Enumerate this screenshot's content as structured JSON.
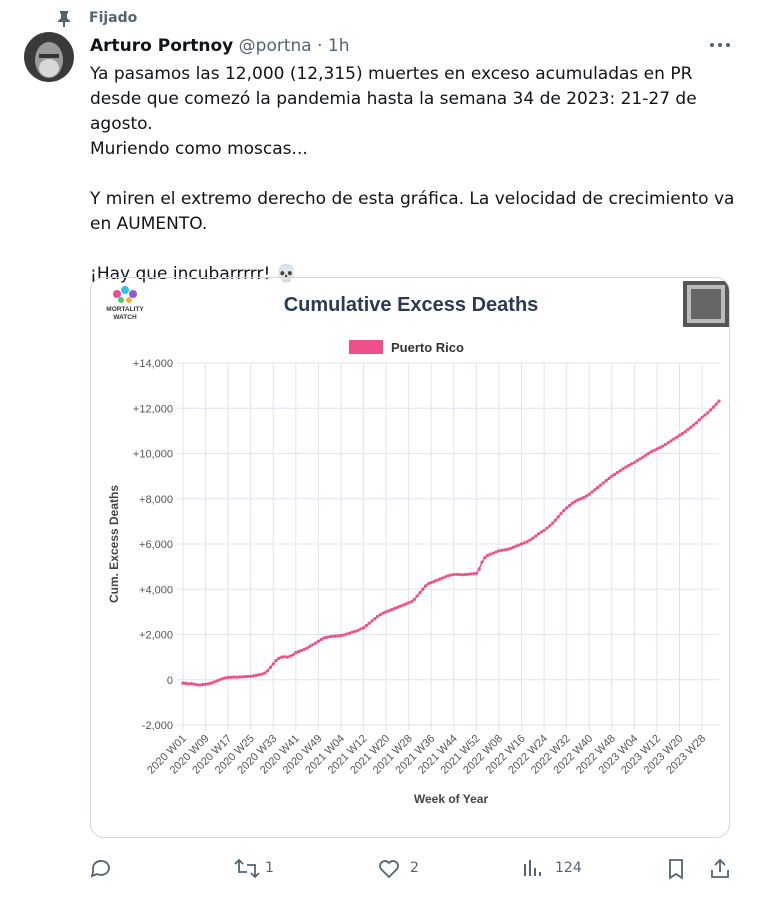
{
  "post": {
    "pinned": "Fijado",
    "author": "Arturo Portnoy",
    "handle": "@portna",
    "time": "· 1h",
    "paragraphs": [
      "Ya pasamos las 12,000 (12,315) muertes en exceso acumuladas en PR desde que comezó la pandemia hasta la semana 34 de 2023: 21-27 de agosto.",
      "Muriendo como moscas...",
      "Y miren el extremo derecho de esta gráfica. La velocidad de crecimiento va en AUMENTO.",
      "¡Hay que incubarrrrr! 💀"
    ],
    "replies_count": null,
    "retweets": "1",
    "likes": "2",
    "views": "124"
  },
  "chart_data": {
    "type": "line",
    "title": "Cumulative Excess Deaths",
    "logo_lines": [
      "MORTALITY",
      "WATCH"
    ],
    "x_label": "Week of Year",
    "y_label": "Cum. Excess Deaths",
    "categories": [
      "2020 W01",
      null,
      null,
      null,
      null,
      null,
      null,
      null,
      "2020 W09",
      null,
      null,
      null,
      null,
      null,
      null,
      null,
      "2020 W17",
      null,
      null,
      null,
      null,
      null,
      null,
      null,
      "2020 W25",
      null,
      null,
      null,
      null,
      null,
      null,
      null,
      "2020 W33",
      null,
      null,
      null,
      null,
      null,
      null,
      null,
      "2020 W41",
      null,
      null,
      null,
      null,
      null,
      null,
      null,
      "2020 W49",
      null,
      null,
      null,
      null,
      null,
      null,
      null,
      "2021 W04",
      null,
      null,
      null,
      null,
      null,
      null,
      null,
      "2021 W12",
      null,
      null,
      null,
      null,
      null,
      null,
      null,
      "2021 W20",
      null,
      null,
      null,
      null,
      null,
      null,
      null,
      "2021 W28",
      null,
      null,
      null,
      null,
      null,
      null,
      null,
      "2021 W36",
      null,
      null,
      null,
      null,
      null,
      null,
      null,
      "2021 W44",
      null,
      null,
      null,
      null,
      null,
      null,
      null,
      "2021 W52",
      null,
      null,
      null,
      null,
      null,
      null,
      null,
      "2022 W08",
      null,
      null,
      null,
      null,
      null,
      null,
      null,
      "2022 W16",
      null,
      null,
      null,
      null,
      null,
      null,
      null,
      "2022 W24",
      null,
      null,
      null,
      null,
      null,
      null,
      null,
      "2022 W32",
      null,
      null,
      null,
      null,
      null,
      null,
      null,
      "2022 W40",
      null,
      null,
      null,
      null,
      null,
      null,
      null,
      "2022 W48",
      null,
      null,
      null,
      null,
      null,
      null,
      null,
      "2023 W04",
      null,
      null,
      null,
      null,
      null,
      null,
      null,
      "2023 W12",
      null,
      null,
      null,
      null,
      null,
      null,
      null,
      "2023 W20",
      null,
      null,
      null,
      null,
      null,
      null,
      null,
      "2023 W28",
      null,
      null,
      null,
      null,
      null,
      null
    ],
    "series": [
      {
        "name": "Puerto Rico",
        "color": "#f0508a",
        "values": [
          -150,
          -160,
          -180,
          -170,
          -200,
          -220,
          -230,
          -210,
          -200,
          -180,
          -150,
          -100,
          -50,
          0,
          50,
          80,
          100,
          110,
          120,
          110,
          120,
          130,
          140,
          150,
          150,
          170,
          200,
          220,
          250,
          300,
          400,
          550,
          700,
          850,
          950,
          1000,
          1020,
          1000,
          1050,
          1100,
          1200,
          1250,
          1300,
          1350,
          1400,
          1480,
          1550,
          1620,
          1700,
          1780,
          1850,
          1880,
          1900,
          1920,
          1930,
          1940,
          1950,
          1980,
          2020,
          2060,
          2100,
          2140,
          2180,
          2240,
          2300,
          2400,
          2500,
          2600,
          2700,
          2800,
          2880,
          2950,
          3000,
          3050,
          3100,
          3150,
          3200,
          3250,
          3300,
          3350,
          3400,
          3450,
          3550,
          3700,
          3850,
          4000,
          4150,
          4250,
          4300,
          4350,
          4400,
          4450,
          4500,
          4550,
          4600,
          4630,
          4650,
          4660,
          4650,
          4640,
          4650,
          4660,
          4680,
          4690,
          4700,
          4900,
          5200,
          5400,
          5500,
          5550,
          5600,
          5650,
          5700,
          5720,
          5740,
          5760,
          5800,
          5850,
          5900,
          5950,
          6000,
          6050,
          6100,
          6180,
          6260,
          6350,
          6450,
          6530,
          6600,
          6700,
          6800,
          6920,
          7050,
          7200,
          7350,
          7480,
          7600,
          7700,
          7800,
          7880,
          7950,
          8000,
          8050,
          8120,
          8200,
          8300,
          8400,
          8500,
          8600,
          8700,
          8800,
          8900,
          9000,
          9080,
          9160,
          9240,
          9320,
          9400,
          9470,
          9540,
          9600,
          9680,
          9760,
          9840,
          9920,
          10000,
          10080,
          10140,
          10200,
          10260,
          10320,
          10400,
          10480,
          10560,
          10640,
          10720,
          10800,
          10880,
          10960,
          11060,
          11160,
          11260,
          11360,
          11480,
          11600,
          11700,
          11800,
          11920,
          12050,
          12180,
          12315
        ]
      }
    ],
    "ylim": [
      -2000,
      14000
    ],
    "yticks": [
      {
        "value": -2000,
        "label": "-2,000"
      },
      0,
      {
        "value": 2000,
        "label": "+2,000"
      },
      {
        "value": 4000,
        "label": "+4,000"
      },
      {
        "value": 6000,
        "label": "+6,000"
      },
      {
        "value": 8000,
        "label": "+8,000"
      },
      {
        "value": 10000,
        "label": "+10,000"
      },
      {
        "value": 12000,
        "label": "+12,000"
      },
      {
        "value": 14000,
        "label": "+14,000"
      }
    ],
    "grid": true,
    "legend": "top"
  }
}
